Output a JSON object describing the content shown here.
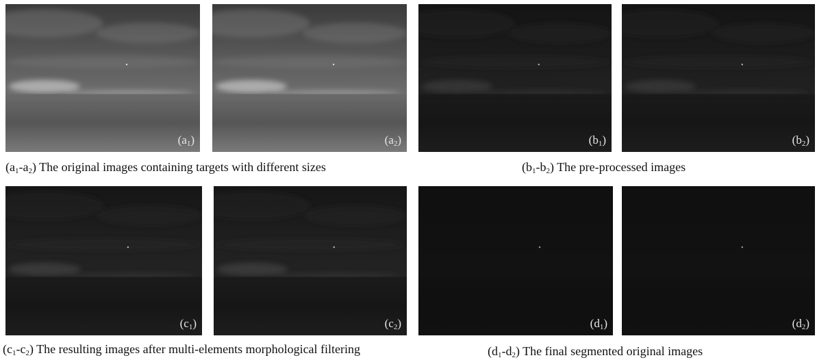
{
  "panels": [
    {
      "name": "a1",
      "letter": "a",
      "index": "1",
      "style": "original"
    },
    {
      "name": "a2",
      "letter": "a",
      "index": "2",
      "style": "original"
    },
    {
      "name": "b1",
      "letter": "b",
      "index": "1",
      "style": "preprocessed"
    },
    {
      "name": "b2",
      "letter": "b",
      "index": "2",
      "style": "preprocessed"
    },
    {
      "name": "c1",
      "letter": "c",
      "index": "1",
      "style": "filtered"
    },
    {
      "name": "c2",
      "letter": "c",
      "index": "2",
      "style": "filtered"
    },
    {
      "name": "d1",
      "letter": "d",
      "index": "1",
      "style": "segmented"
    },
    {
      "name": "d2",
      "letter": "d",
      "index": "2",
      "style": "segmented"
    }
  ],
  "captions": {
    "a": {
      "l1": "a",
      "s1": "1",
      "dash": "-",
      "l2": "a",
      "s2": "2",
      "text": "The original images containing targets with different sizes"
    },
    "b": {
      "l1": "b",
      "s1": "1",
      "dash": "-",
      "l2": "b",
      "s2": "2",
      "text": "The pre-processed images"
    },
    "c": {
      "l1": "c",
      "s1": "1",
      "dash": "-",
      "l2": "c",
      "s2": "2",
      "text": "The resulting images after multi-elements morphological filtering"
    },
    "d": {
      "l1": "d",
      "s1": "1",
      "dash": "-",
      "l2": "d",
      "s2": "2",
      "text": "The final segmented original images"
    }
  }
}
